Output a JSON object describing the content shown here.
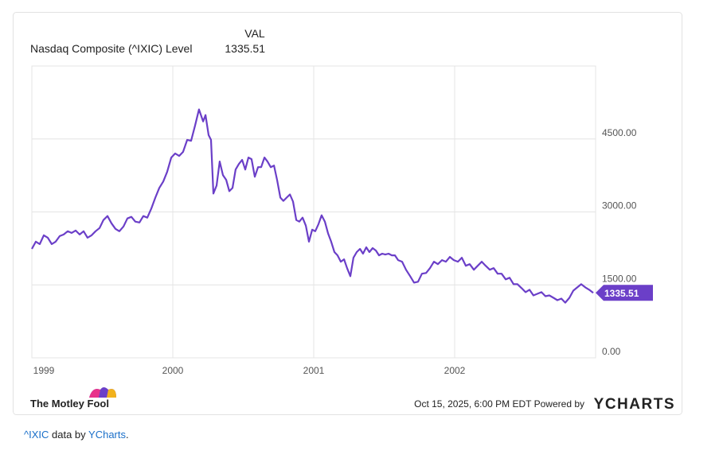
{
  "chart_data": {
    "type": "line",
    "legend_header": "VAL",
    "title": "Nasdaq Composite (^IXIC) Level",
    "x": [
      1999.0,
      1999.028,
      1999.056,
      1999.085,
      1999.113,
      1999.141,
      1999.169,
      1999.198,
      1999.226,
      1999.254,
      1999.282,
      1999.311,
      1999.339,
      1999.367,
      1999.395,
      1999.424,
      1999.452,
      1999.48,
      1999.508,
      1999.537,
      1999.565,
      1999.593,
      1999.621,
      1999.65,
      1999.678,
      1999.706,
      1999.734,
      1999.763,
      1999.791,
      1999.819,
      1999.847,
      1999.876,
      1999.904,
      1999.932,
      1999.96,
      1999.989,
      2000.017,
      2000.045,
      2000.073,
      2000.102,
      2000.13,
      2000.158,
      2000.186,
      2000.215,
      2000.232,
      2000.254,
      2000.271,
      2000.288,
      2000.311,
      2000.333,
      2000.356,
      2000.379,
      2000.401,
      2000.424,
      2000.446,
      2000.469,
      2000.492,
      2000.514,
      2000.537,
      2000.559,
      2000.582,
      2000.605,
      2000.627,
      2000.65,
      2000.672,
      2000.695,
      2000.718,
      2000.74,
      2000.763,
      2000.785,
      2000.808,
      2000.831,
      2000.853,
      2000.876,
      2000.898,
      2000.921,
      2000.944,
      2000.966,
      2000.989,
      2001.011,
      2001.034,
      2001.056,
      2001.079,
      2001.102,
      2001.124,
      2001.147,
      2001.169,
      2001.192,
      2001.215,
      2001.237,
      2001.26,
      2001.282,
      2001.305,
      2001.328,
      2001.35,
      2001.373,
      2001.395,
      2001.418,
      2001.441,
      2001.463,
      2001.486,
      2001.508,
      2001.531,
      2001.554,
      2001.576,
      2001.599,
      2001.627,
      2001.655,
      2001.684,
      2001.712,
      2001.74,
      2001.768,
      2001.797,
      2001.825,
      2001.853,
      2001.881,
      2001.91,
      2001.938,
      2001.966,
      2001.994,
      2002.023,
      2002.051,
      2002.079,
      2002.107,
      2002.136,
      2002.164,
      2002.192,
      2002.22,
      2002.249,
      2002.277,
      2002.305,
      2002.333,
      2002.362,
      2002.39,
      2002.418,
      2002.446,
      2002.475,
      2002.503,
      2002.531,
      2002.559,
      2002.588,
      2002.616,
      2002.644,
      2002.672,
      2002.701,
      2002.729,
      2002.757,
      2002.785,
      2002.814,
      2002.842,
      2002.87,
      2002.898,
      2002.927,
      2002.955,
      2002.983
    ],
    "series": [
      {
        "name": "Nasdaq Composite (^IXIC) Level",
        "color": "#6b3fc8",
        "values": [
          2239,
          2388,
          2338,
          2520,
          2470,
          2338,
          2388,
          2503,
          2536,
          2602,
          2569,
          2618,
          2536,
          2602,
          2470,
          2520,
          2602,
          2668,
          2833,
          2915,
          2767,
          2651,
          2602,
          2701,
          2866,
          2899,
          2800,
          2783,
          2915,
          2882,
          3063,
          3294,
          3492,
          3624,
          3822,
          4118,
          4201,
          4151,
          4234,
          4481,
          4464,
          4777,
          5107,
          4860,
          4992,
          4580,
          4481,
          3377,
          3541,
          4036,
          3756,
          3657,
          3426,
          3492,
          3871,
          3986,
          4069,
          3871,
          4118,
          4085,
          3723,
          3920,
          3920,
          4118,
          4036,
          3920,
          3953,
          3657,
          3294,
          3228,
          3294,
          3360,
          3212,
          2833,
          2800,
          2882,
          2717,
          2388,
          2635,
          2602,
          2750,
          2932,
          2800,
          2553,
          2388,
          2174,
          2108,
          1976,
          2025,
          1844,
          1679,
          2058,
          2174,
          2239,
          2141,
          2272,
          2174,
          2256,
          2206,
          2108,
          2141,
          2124,
          2141,
          2108,
          2108,
          2009,
          1976,
          1811,
          1679,
          1547,
          1564,
          1729,
          1745,
          1844,
          1976,
          1926,
          2009,
          1976,
          2075,
          2009,
          1976,
          2058,
          1893,
          1926,
          1811,
          1893,
          1976,
          1893,
          1811,
          1844,
          1729,
          1729,
          1613,
          1646,
          1514,
          1514,
          1432,
          1350,
          1399,
          1284,
          1317,
          1350,
          1267,
          1284,
          1234,
          1185,
          1218,
          1135,
          1234,
          1382,
          1448,
          1514,
          1448,
          1399,
          1335.51
        ]
      }
    ],
    "xlim": [
      1999,
      2003
    ],
    "xticks": [
      1999,
      2000,
      2001,
      2002
    ],
    "ylim": [
      0,
      6000
    ],
    "yticks": [
      {
        "value": 0,
        "label": "0.00"
      },
      {
        "value": 1500,
        "label": "1500.00"
      },
      {
        "value": 3000,
        "label": "3000.00"
      },
      {
        "value": 4500,
        "label": "4500.00"
      }
    ],
    "grid": true
  },
  "footer": {
    "brand": "The Motley Fool",
    "timestamp": "Oct 15, 2025, 6:00 PM EDT Powered by",
    "provider": "YCHARTS"
  },
  "caption": {
    "link1": "^IXIC",
    "text": " data by ",
    "link2": "YCharts",
    "end": "."
  }
}
